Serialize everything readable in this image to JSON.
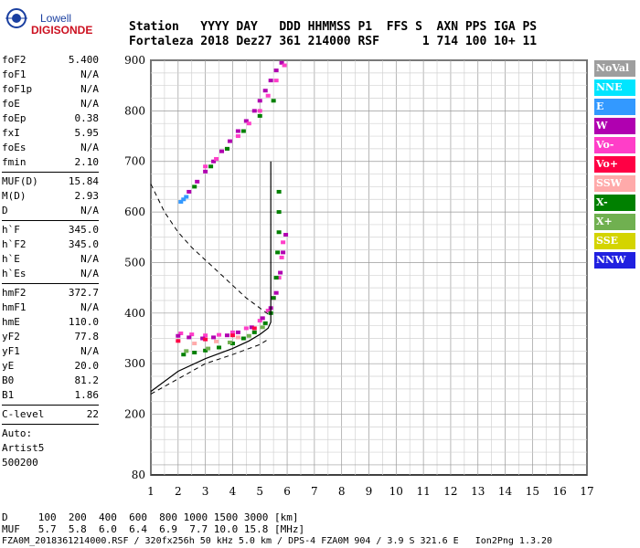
{
  "logo": {
    "line1": "Lowell",
    "line2": "DIGISONDE"
  },
  "header": {
    "line1": "Station   YYYY DAY   DDD HHMMSS P1  FFS S  AXN PPS IGA PS",
    "line2": "Fortaleza 2018 Dez27 361 214000 RSF      1 714 100 10+ 11"
  },
  "params": {
    "group1": [
      {
        "label": "foF2",
        "value": "5.400"
      },
      {
        "label": "foF1",
        "value": "N/A"
      },
      {
        "label": "foF1p",
        "value": "N/A"
      },
      {
        "label": "foE",
        "value": "N/A"
      },
      {
        "label": "foEp",
        "value": "0.38"
      },
      {
        "label": "fxI",
        "value": "5.95"
      },
      {
        "label": "foEs",
        "value": "N/A"
      },
      {
        "label": "fmin",
        "value": "2.10"
      }
    ],
    "group2": [
      {
        "label": "MUF(D)",
        "value": "15.84"
      },
      {
        "label": "M(D)",
        "value": "2.93"
      },
      {
        "label": "D",
        "value": "N/A"
      }
    ],
    "group3": [
      {
        "label": "h`F",
        "value": "345.0"
      },
      {
        "label": "h`F2",
        "value": "345.0"
      },
      {
        "label": "h`E",
        "value": "N/A"
      },
      {
        "label": "h`Es",
        "value": "N/A"
      }
    ],
    "group4": [
      {
        "label": "hmF2",
        "value": "372.7"
      },
      {
        "label": "hmF1",
        "value": "N/A"
      },
      {
        "label": "hmE",
        "value": "110.0"
      },
      {
        "label": "yF2",
        "value": "77.8"
      },
      {
        "label": "yF1",
        "value": "N/A"
      },
      {
        "label": "yE",
        "value": "20.0"
      },
      {
        "label": "B0",
        "value": "81.2"
      },
      {
        "label": "B1",
        "value": "1.86"
      }
    ],
    "group5": [
      {
        "label": "C-level",
        "value": "22"
      }
    ],
    "autoscale": {
      "line1": "Auto:",
      "line2": "Artist5",
      "line3": "500200"
    }
  },
  "legend": [
    {
      "label": "NoVal",
      "color": "#9e9e9e"
    },
    {
      "label": "NNE",
      "color": "#00e5ff"
    },
    {
      "label": "E",
      "color": "#3399ff"
    },
    {
      "label": "W",
      "color": "#b000b0"
    },
    {
      "label": "Vo-",
      "color": "#ff3ec8"
    },
    {
      "label": "Vo+",
      "color": "#ff0044"
    },
    {
      "label": "SSW",
      "color": "#ffaaaa"
    },
    {
      "label": "X-",
      "color": "#008000"
    },
    {
      "label": "X+",
      "color": "#70b050"
    },
    {
      "label": "SSE",
      "color": "#d4d400"
    },
    {
      "label": "NNW",
      "color": "#2020e0"
    }
  ],
  "footer": {
    "row_d": "D     100  200  400  600  800 1000 1500 3000 [km]",
    "row_muf": "MUF   5.7  5.8  6.0  6.4  6.9  7.7 10.0 15.8 [MHz]",
    "info": "FZA0M_2018361214000.RSF / 320fx256h 50 kHz 5.0 km / DPS-4 FZA0M 904 / 3.9 S 321.6 E   Ion2Png 1.3.20"
  },
  "chart_data": {
    "type": "scatter",
    "xlim": [
      1,
      17
    ],
    "ylim": [
      80,
      900
    ],
    "x_ticks": [
      1,
      2,
      3,
      4,
      5,
      6,
      7,
      8,
      9,
      10,
      11,
      12,
      13,
      14,
      15,
      16,
      17
    ],
    "y_ticks": [
      80,
      200,
      300,
      400,
      500,
      600,
      700,
      800,
      900
    ],
    "grid": true,
    "legend_placement": "right",
    "profile": [
      [
        1.0,
        245
      ],
      [
        2.0,
        285
      ],
      [
        3.0,
        310
      ],
      [
        4.0,
        330
      ],
      [
        4.6,
        345
      ],
      [
        5.0,
        358
      ],
      [
        5.3,
        370
      ],
      [
        5.4,
        382
      ],
      [
        5.4,
        420
      ],
      [
        5.4,
        520
      ],
      [
        5.4,
        600
      ],
      [
        5.4,
        700
      ]
    ],
    "muf_curve": [
      [
        1.0,
        655
      ],
      [
        1.5,
        600
      ],
      [
        2.0,
        560
      ],
      [
        2.5,
        530
      ],
      [
        3.0,
        505
      ],
      [
        3.5,
        480
      ],
      [
        4.0,
        455
      ],
      [
        4.5,
        430
      ],
      [
        5.0,
        410
      ],
      [
        5.3,
        398
      ]
    ],
    "lower_dashed": [
      [
        1.0,
        240
      ],
      [
        2.0,
        270
      ],
      [
        3.0,
        300
      ],
      [
        4.0,
        318
      ],
      [
        5.0,
        338
      ],
      [
        5.3,
        348
      ]
    ],
    "traces": [
      {
        "mode": "Vo-",
        "points": [
          [
            2.1,
            360
          ],
          [
            2.5,
            358
          ],
          [
            3.0,
            356
          ],
          [
            3.5,
            357
          ],
          [
            4.0,
            362
          ],
          [
            4.5,
            370
          ],
          [
            5.0,
            385
          ],
          [
            5.3,
            405
          ],
          [
            5.5,
            430
          ],
          [
            5.7,
            470
          ],
          [
            5.8,
            510
          ],
          [
            5.85,
            540
          ]
        ]
      },
      {
        "mode": "W",
        "points": [
          [
            2.0,
            355
          ],
          [
            2.4,
            352
          ],
          [
            2.9,
            350
          ],
          [
            3.3,
            352
          ],
          [
            3.8,
            356
          ],
          [
            4.2,
            362
          ],
          [
            4.7,
            372
          ],
          [
            5.1,
            390
          ],
          [
            5.4,
            410
          ],
          [
            5.6,
            440
          ],
          [
            5.75,
            480
          ],
          [
            5.85,
            520
          ],
          [
            5.95,
            555
          ]
        ]
      },
      {
        "mode": "X-",
        "points": [
          [
            2.2,
            318
          ],
          [
            2.6,
            322
          ],
          [
            3.0,
            326
          ],
          [
            3.5,
            332
          ],
          [
            4.0,
            340
          ],
          [
            4.4,
            350
          ],
          [
            4.8,
            362
          ],
          [
            5.2,
            380
          ],
          [
            5.4,
            400
          ],
          [
            5.5,
            430
          ],
          [
            5.6,
            470
          ],
          [
            5.65,
            520
          ],
          [
            5.7,
            560
          ],
          [
            5.7,
            600
          ],
          [
            5.7,
            640
          ]
        ]
      },
      {
        "mode": "X+",
        "points": [
          [
            2.3,
            325
          ],
          [
            3.1,
            330
          ],
          [
            3.9,
            342
          ],
          [
            4.6,
            355
          ],
          [
            5.1,
            372
          ]
        ]
      },
      {
        "mode": "Vo+",
        "points": [
          [
            2.0,
            345
          ],
          [
            3.0,
            348
          ],
          [
            4.0,
            356
          ],
          [
            4.8,
            370
          ]
        ]
      },
      {
        "mode": "SSW",
        "points": [
          [
            2.6,
            340
          ],
          [
            3.4,
            344
          ],
          [
            4.2,
            352
          ]
        ]
      },
      {
        "mode": "E",
        "points": [
          [
            2.1,
            620
          ],
          [
            2.2,
            625
          ],
          [
            2.3,
            630
          ]
        ]
      },
      {
        "mode": "W",
        "points": [
          [
            2.4,
            640
          ],
          [
            2.7,
            660
          ],
          [
            3.0,
            680
          ],
          [
            3.3,
            700
          ],
          [
            3.6,
            720
          ],
          [
            3.9,
            740
          ],
          [
            4.2,
            760
          ],
          [
            4.5,
            780
          ],
          [
            4.8,
            800
          ],
          [
            5.0,
            820
          ],
          [
            5.2,
            840
          ],
          [
            5.4,
            860
          ],
          [
            5.6,
            880
          ],
          [
            5.8,
            895
          ]
        ]
      },
      {
        "mode": "Vo-",
        "points": [
          [
            3.0,
            690
          ],
          [
            3.4,
            705
          ],
          [
            3.8,
            725
          ],
          [
            4.2,
            750
          ],
          [
            4.6,
            775
          ],
          [
            5.0,
            800
          ],
          [
            5.3,
            830
          ],
          [
            5.6,
            860
          ],
          [
            5.9,
            890
          ]
        ]
      },
      {
        "mode": "X-",
        "points": [
          [
            2.6,
            650
          ],
          [
            3.2,
            690
          ],
          [
            3.8,
            725
          ],
          [
            4.4,
            760
          ],
          [
            5.0,
            790
          ],
          [
            5.5,
            820
          ]
        ]
      }
    ]
  }
}
